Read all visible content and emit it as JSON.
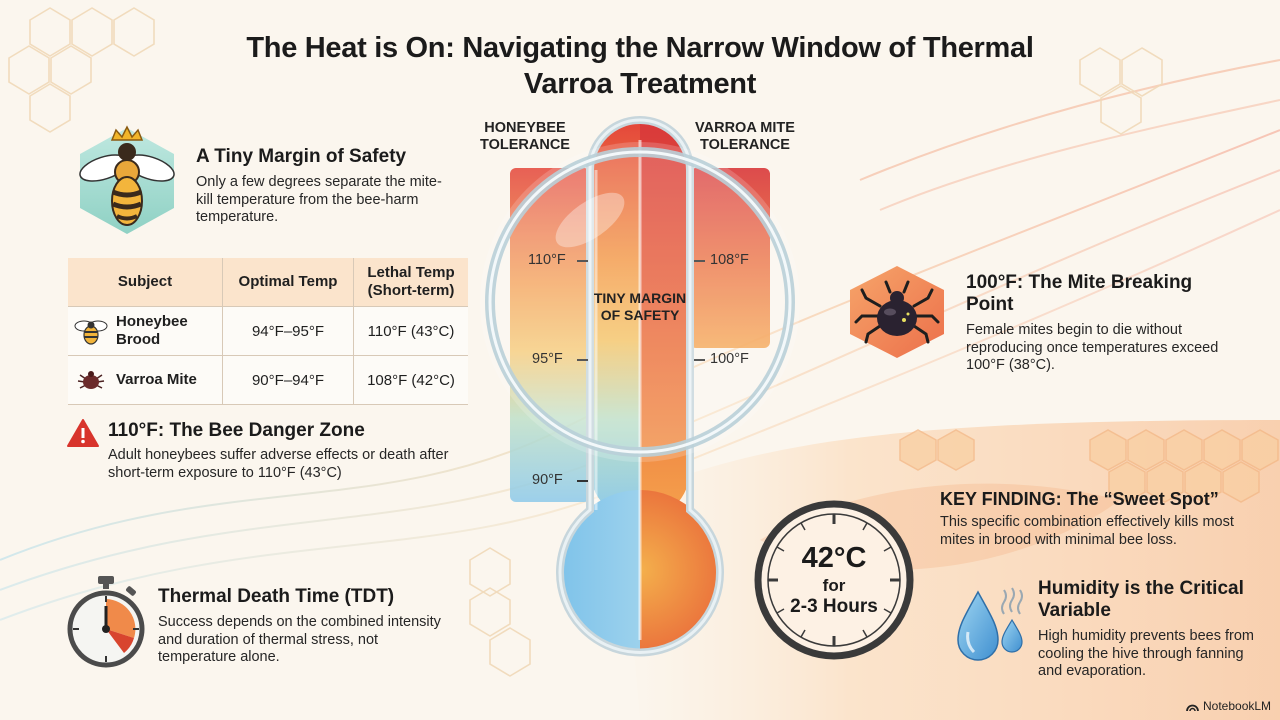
{
  "title": "The Heat is On: Navigating the Narrow Window of Thermal Varroa Treatment",
  "margin_section": {
    "heading": "A Tiny Margin of Safety",
    "text": "Only a few degrees separate the mite-kill temperature from the bee-harm temperature.",
    "icon": "queen-bee-icon"
  },
  "table": {
    "headers": [
      "Subject",
      "Optimal Temp",
      "Lethal Temp (Short-term)"
    ],
    "rows": [
      {
        "subject": "Honeybee Brood",
        "optimal": "94°F–95°F",
        "lethal": "110°F (43°C)",
        "icon": "bee-icon"
      },
      {
        "subject": "Varroa Mite",
        "optimal": "90°F–94°F",
        "lethal": "108°F (42°C)",
        "icon": "mite-icon"
      }
    ]
  },
  "danger_section": {
    "heading": "110°F: The Bee Danger Zone",
    "text": "Adult honeybees suffer adverse effects or death after short-term exposure to 110°F (43°C)",
    "icon": "warning-icon"
  },
  "tdt_section": {
    "heading": "Thermal Death Time (TDT)",
    "text": "Success depends on the combined intensity and duration of thermal stress, not temperature alone.",
    "icon": "stopwatch-icon"
  },
  "thermometer": {
    "left_label": "HONEYBEE TOLERANCE",
    "right_label": "VARROA MITE TOLERANCE",
    "left_ticks": [
      "110°F",
      "95°F",
      "90°F"
    ],
    "right_ticks": [
      "108°F",
      "100°F"
    ],
    "center_label": "TINY MARGIN OF SAFETY",
    "icon": "magnifying-glass-icon"
  },
  "mite_section": {
    "heading": "100°F: The Mite Breaking Point",
    "text": "Female mites begin to die without reproducing once temperatures exceed 100°F (38°C).",
    "icon": "mite-icon"
  },
  "key_finding": {
    "heading": "KEY FINDING: The “Sweet Spot”",
    "text": "This specific combination effectively kills most mites in brood with minimal bee loss.",
    "clock_value": "42°C",
    "clock_for": "for",
    "clock_duration": "2-3 Hours",
    "icon": "clock-icon"
  },
  "humidity_section": {
    "heading": "Humidity is the Critical Variable",
    "text": "High humidity prevents bees from cooling the hive through fanning and evaporation.",
    "icon": "water-drops-icon"
  },
  "brand": "NotebookLM",
  "colors": {
    "hot": "#e0483a",
    "warm": "#f08a3c",
    "cool": "#7ec4e6",
    "cream": "#fbf6ee"
  }
}
